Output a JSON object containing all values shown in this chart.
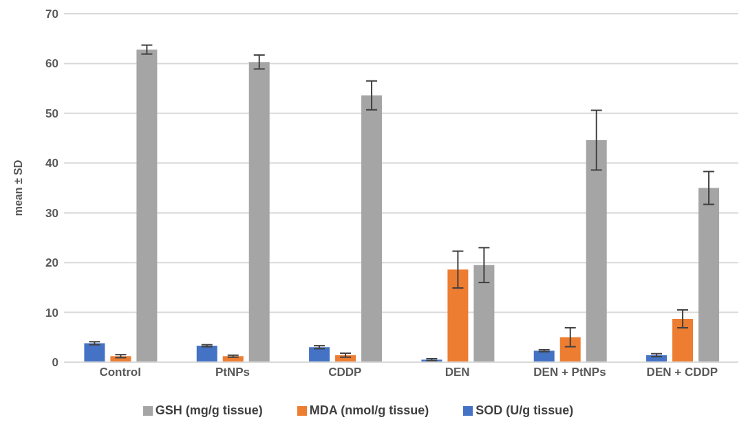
{
  "chart_data": {
    "type": "bar",
    "ylabel": "mean ± SD",
    "categories": [
      "Control",
      "PtNPs",
      "CDDP",
      "DEN",
      "DEN + PtNPs",
      "DEN + CDDP"
    ],
    "series": [
      {
        "name": "SOD (U/g tissue)",
        "color": "#4472c4",
        "values": [
          3.8,
          3.3,
          3.0,
          0.5,
          2.3,
          1.4
        ],
        "errors": [
          0.3,
          0.2,
          0.3,
          0.2,
          0.2,
          0.3
        ]
      },
      {
        "name": "MDA (nmol/g tissue)",
        "color": "#ed7d31",
        "values": [
          1.2,
          1.2,
          1.4,
          18.6,
          5.0,
          8.7
        ],
        "errors": [
          0.3,
          0.2,
          0.4,
          3.7,
          1.9,
          1.8
        ]
      },
      {
        "name": "GSH (mg/g tissue)",
        "color": "#a5a5a5",
        "values": [
          62.8,
          60.3,
          53.6,
          19.5,
          44.6,
          35.0
        ],
        "errors": [
          0.9,
          1.4,
          2.9,
          3.5,
          6.0,
          3.3
        ]
      }
    ],
    "ylim": [
      0,
      70
    ],
    "yticks": [
      0,
      10,
      20,
      30,
      40,
      50,
      60,
      70
    ],
    "grid": "y",
    "legend": "bottom"
  }
}
